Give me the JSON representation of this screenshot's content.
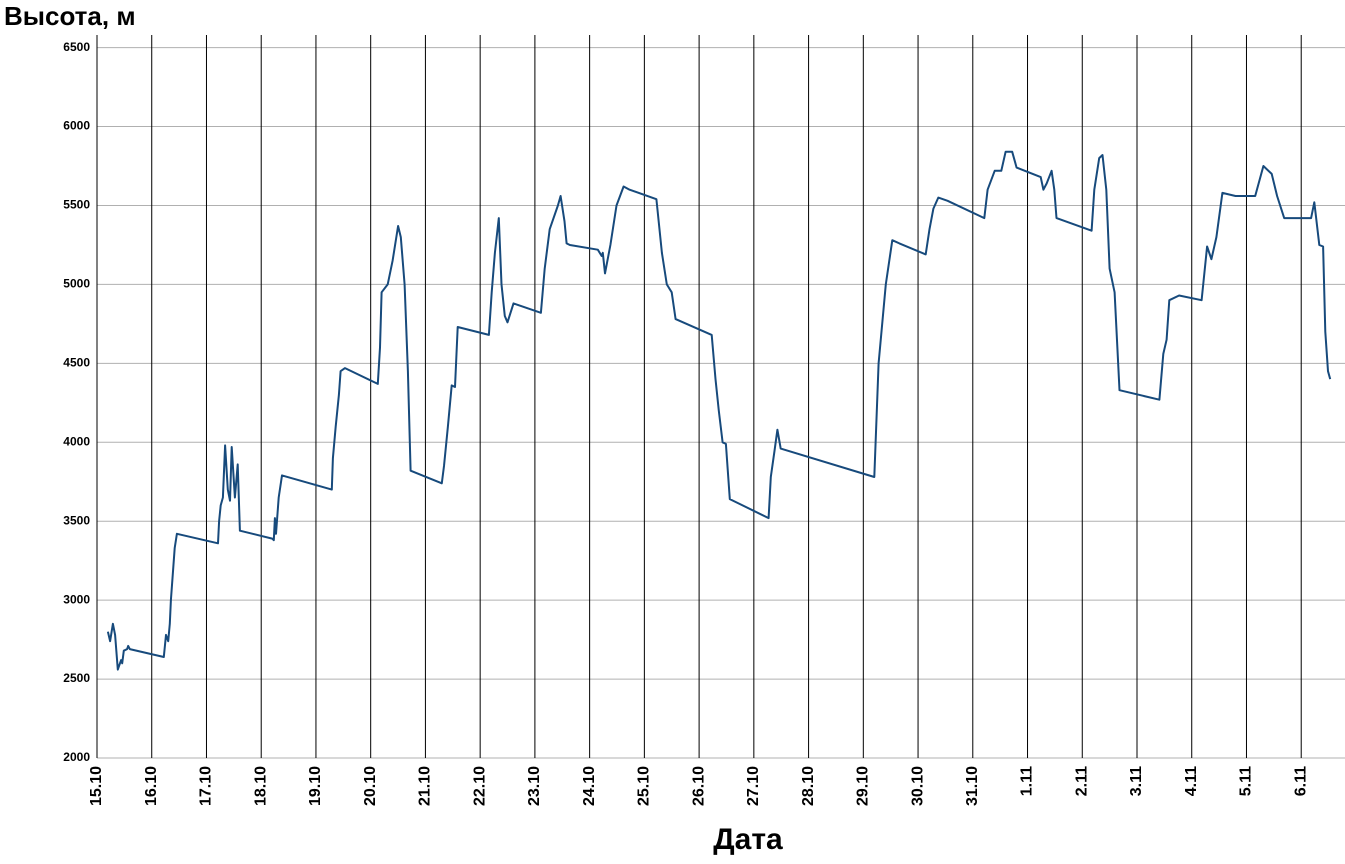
{
  "chart_data": {
    "type": "line",
    "title": "Высота, м",
    "x_label": "Дата",
    "xlim": [
      0,
      22.8
    ],
    "ylim": [
      2000,
      6580
    ],
    "xticks": [
      {
        "value": 0,
        "label": "15.10"
      },
      {
        "value": 1,
        "label": "16.10"
      },
      {
        "value": 2,
        "label": "17.10"
      },
      {
        "value": 3,
        "label": "18.10"
      },
      {
        "value": 4,
        "label": "19.10"
      },
      {
        "value": 5,
        "label": "20.10"
      },
      {
        "value": 6,
        "label": "21.10"
      },
      {
        "value": 7,
        "label": "22.10"
      },
      {
        "value": 8,
        "label": "23.10"
      },
      {
        "value": 9,
        "label": "24.10"
      },
      {
        "value": 10,
        "label": "25.10"
      },
      {
        "value": 11,
        "label": "26.10"
      },
      {
        "value": 12,
        "label": "27.10"
      },
      {
        "value": 13,
        "label": "28.10"
      },
      {
        "value": 14,
        "label": "29.10"
      },
      {
        "value": 15,
        "label": "30.10"
      },
      {
        "value": 16,
        "label": "31.10"
      },
      {
        "value": 17,
        "label": "1.11"
      },
      {
        "value": 18,
        "label": "2.11"
      },
      {
        "value": 19,
        "label": "3.11"
      },
      {
        "value": 20,
        "label": "4.11"
      },
      {
        "value": 21,
        "label": "5.11"
      },
      {
        "value": 22,
        "label": "6.11"
      }
    ],
    "yticks": [
      2000,
      2500,
      3000,
      3500,
      4000,
      4500,
      5000,
      5500,
      6000,
      6500
    ],
    "grid": true,
    "x": [
      0.2,
      0.24,
      0.29,
      0.33,
      0.38,
      0.44,
      0.46,
      0.49,
      0.55,
      0.57,
      0.6,
      1.22,
      1.26,
      1.3,
      1.33,
      1.35,
      1.42,
      1.46,
      2.21,
      2.23,
      2.26,
      2.3,
      2.34,
      2.39,
      2.43,
      2.46,
      2.52,
      2.57,
      2.61,
      3.2,
      3.23,
      3.25,
      3.27,
      3.32,
      3.38,
      4.29,
      4.31,
      4.36,
      4.42,
      4.45,
      4.53,
      5.13,
      5.17,
      5.2,
      5.31,
      5.4,
      5.5,
      5.55,
      5.62,
      5.68,
      5.73,
      6.3,
      6.34,
      6.41,
      6.48,
      6.54,
      6.59,
      7.16,
      7.21,
      7.27,
      7.34,
      7.39,
      7.45,
      7.5,
      7.61,
      8.11,
      8.18,
      8.27,
      8.42,
      8.47,
      8.54,
      8.58,
      8.64,
      9.15,
      9.22,
      9.24,
      9.28,
      9.38,
      9.49,
      9.62,
      9.73,
      10.22,
      10.32,
      10.41,
      10.5,
      10.57,
      11.23,
      11.3,
      11.36,
      11.43,
      11.49,
      11.56,
      12.27,
      12.31,
      12.38,
      12.43,
      12.49,
      14.2,
      14.28,
      14.41,
      14.53,
      14.66,
      15.14,
      15.21,
      15.28,
      15.37,
      15.54,
      16.21,
      16.27,
      16.4,
      16.52,
      16.6,
      16.72,
      16.8,
      17.24,
      17.29,
      17.35,
      17.44,
      17.49,
      17.53,
      18.17,
      18.22,
      18.31,
      18.37,
      18.44,
      18.5,
      18.59,
      18.68,
      19.41,
      19.48,
      19.54,
      19.59,
      19.77,
      20.18,
      20.28,
      20.36,
      20.45,
      20.56,
      20.8,
      21.16,
      21.31,
      21.46,
      21.56,
      21.69,
      22.18,
      22.24,
      22.33,
      22.4,
      22.44,
      22.49,
      22.53
    ],
    "series": [
      {
        "name": "Высота",
        "color": "#174a7c",
        "values": [
          2800,
          2740,
          2850,
          2780,
          2560,
          2620,
          2600,
          2680,
          2690,
          2710,
          2690,
          2640,
          2780,
          2740,
          2850,
          3000,
          3330,
          3420,
          3360,
          3500,
          3600,
          3650,
          3980,
          3700,
          3630,
          3970,
          3650,
          3860,
          3440,
          3390,
          3380,
          3520,
          3420,
          3650,
          3790,
          3700,
          3900,
          4100,
          4300,
          4450,
          4470,
          4370,
          4600,
          4950,
          5000,
          5150,
          5370,
          5300,
          5000,
          4450,
          3820,
          3740,
          3850,
          4100,
          4360,
          4350,
          4730,
          4680,
          4950,
          5200,
          5420,
          5000,
          4800,
          4760,
          4880,
          4820,
          5100,
          5350,
          5500,
          5560,
          5400,
          5260,
          5250,
          5220,
          5180,
          5200,
          5070,
          5250,
          5500,
          5620,
          5600,
          5540,
          5200,
          5000,
          4950,
          4780,
          4680,
          4400,
          4200,
          4000,
          3990,
          3640,
          3520,
          3780,
          3950,
          4080,
          3960,
          3780,
          4500,
          5000,
          5280,
          5260,
          5190,
          5350,
          5480,
          5550,
          5530,
          5420,
          5600,
          5720,
          5720,
          5840,
          5840,
          5740,
          5680,
          5600,
          5640,
          5720,
          5600,
          5420,
          5340,
          5600,
          5800,
          5820,
          5600,
          5100,
          4950,
          4330,
          4270,
          4560,
          4650,
          4900,
          4930,
          4900,
          5240,
          5160,
          5300,
          5580,
          5560,
          5560,
          5750,
          5700,
          5560,
          5420,
          5420,
          5520,
          5250,
          5240,
          4700,
          4450,
          4400
        ]
      }
    ]
  }
}
